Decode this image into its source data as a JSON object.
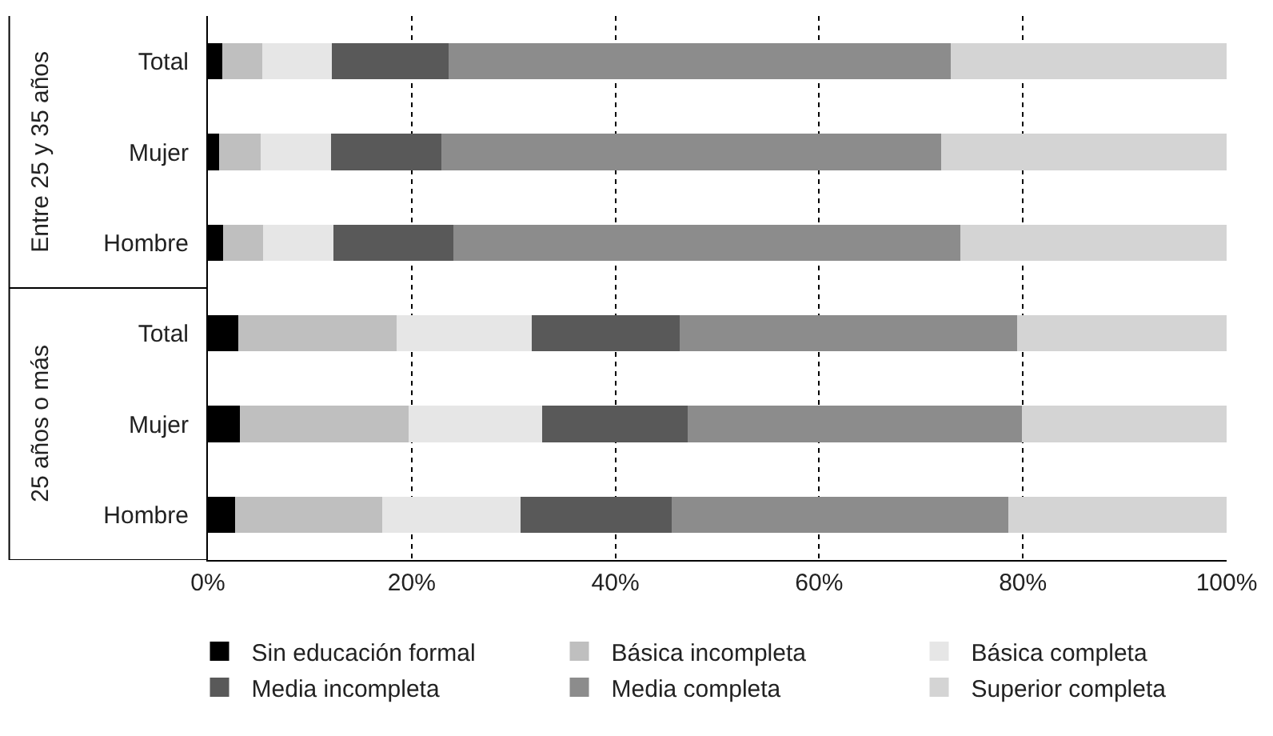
{
  "chart_data": {
    "type": "bar",
    "orientation": "horizontal",
    "stacked": true,
    "categories": [
      "Total",
      "Mujer",
      "Hombre",
      "Total",
      "Mujer",
      "Hombre"
    ],
    "annotations": [
      "Entre 25 y 35 años",
      "25 años o más"
    ],
    "series": [
      {
        "name": "Sin educación formal",
        "color": "#000000",
        "values": [
          1.4,
          1.1,
          1.5,
          3.0,
          3.1,
          2.7
        ]
      },
      {
        "name": "Básica incompleta",
        "color": "#bfbfbf",
        "values": [
          3.9,
          4.1,
          3.9,
          15.5,
          16.6,
          14.4
        ]
      },
      {
        "name": "Básica completa",
        "color": "#e6e6e6",
        "values": [
          6.9,
          6.9,
          6.9,
          13.3,
          13.1,
          13.6
        ]
      },
      {
        "name": "Media incompleta",
        "color": "#595959",
        "values": [
          11.4,
          10.8,
          11.8,
          14.5,
          14.3,
          14.8
        ]
      },
      {
        "name": "Media completa",
        "color": "#8c8c8c",
        "values": [
          49.3,
          49.1,
          49.8,
          33.1,
          32.8,
          33.1
        ]
      },
      {
        "name": "Superior completa",
        "color": "#d4d4d4",
        "values": [
          27.1,
          28.0,
          26.1,
          20.6,
          20.1,
          21.4
        ]
      }
    ],
    "xlim": [
      0,
      100
    ],
    "xticks": [
      {
        "value": 0,
        "label": "0%"
      },
      {
        "value": 20,
        "label": "20%"
      },
      {
        "value": 40,
        "label": "40%"
      },
      {
        "value": 60,
        "label": "60%"
      },
      {
        "value": 80,
        "label": "80%"
      },
      {
        "value": 100,
        "label": "100%"
      }
    ],
    "grid": "x",
    "legend": "bottom"
  }
}
